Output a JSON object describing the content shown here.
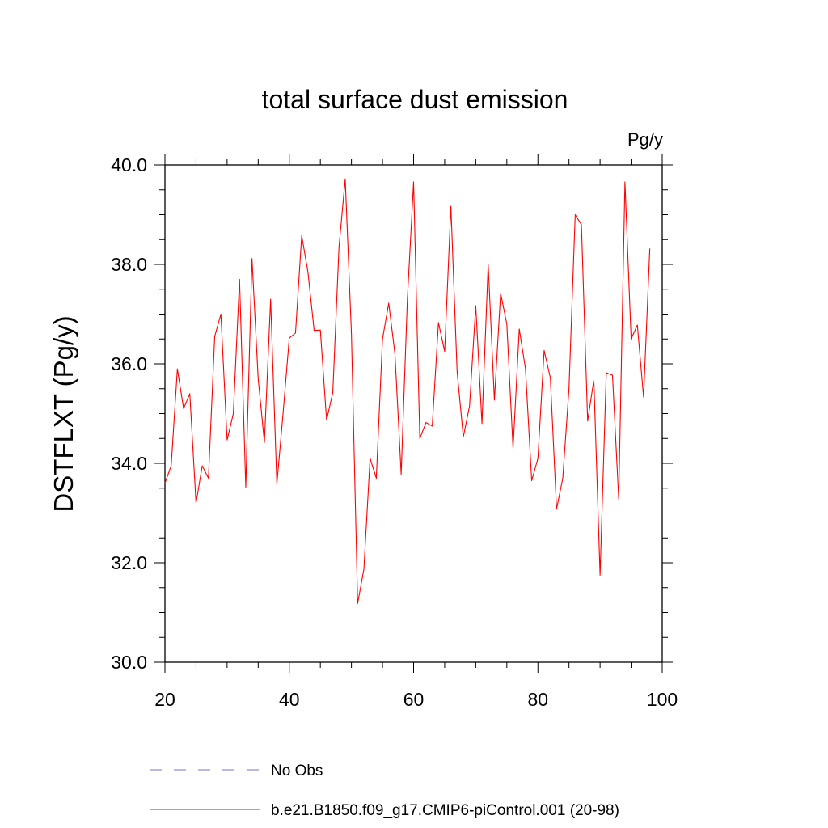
{
  "chart_data": {
    "type": "line",
    "title": "total surface dust emission",
    "units": "Pg/y",
    "xlabel": "",
    "ylabel": "DSTFLXT  (Pg/y)",
    "xlim": [
      20,
      100
    ],
    "ylim": [
      30,
      40
    ],
    "x_ticks": [
      "20",
      "40",
      "60",
      "80",
      "100"
    ],
    "y_ticks": [
      "30.0",
      "32.0",
      "34.0",
      "36.0",
      "38.0",
      "40.0"
    ],
    "grid": false,
    "legend_position": "bottom",
    "legend": [
      {
        "label": "No Obs",
        "color": "#7b6fd0",
        "style": "dashed"
      },
      {
        "label": "b.e21.B1850.f09_g17.CMIP6-piControl.001 (20-98)",
        "color": "#ff0000",
        "style": "solid"
      }
    ],
    "series": [
      {
        "name": "b.e21.B1850.f09_g17.CMIP6-piControl.001 (20-98)",
        "color": "#ff0000",
        "x": [
          20,
          21,
          22,
          23,
          24,
          25,
          26,
          27,
          28,
          29,
          30,
          31,
          32,
          33,
          34,
          35,
          36,
          37,
          38,
          39,
          40,
          41,
          42,
          43,
          44,
          45,
          46,
          47,
          48,
          49,
          50,
          51,
          52,
          53,
          54,
          55,
          56,
          57,
          58,
          59,
          60,
          61,
          62,
          63,
          64,
          65,
          66,
          67,
          68,
          69,
          70,
          71,
          72,
          73,
          74,
          75,
          76,
          77,
          78,
          79,
          80,
          81,
          82,
          83,
          84,
          85,
          86,
          87,
          88,
          89,
          90,
          91,
          92,
          93,
          94,
          95,
          96,
          97,
          98
        ],
        "values": [
          33.6,
          33.95,
          35.9,
          35.1,
          35.4,
          33.2,
          33.95,
          33.7,
          36.55,
          37.0,
          34.47,
          35.0,
          37.7,
          33.52,
          38.12,
          35.7,
          34.42,
          37.3,
          33.58,
          35.0,
          36.52,
          36.62,
          38.58,
          37.85,
          36.67,
          36.68,
          34.87,
          35.42,
          38.35,
          39.72,
          36.6,
          31.18,
          31.87,
          34.1,
          33.7,
          36.5,
          37.22,
          36.2,
          33.78,
          37.3,
          39.66,
          34.5,
          34.82,
          34.75,
          36.83,
          36.25,
          39.17,
          35.85,
          34.53,
          35.15,
          37.17,
          34.8,
          38.0,
          35.27,
          37.42,
          36.8,
          34.3,
          36.7,
          35.9,
          33.65,
          34.1,
          36.27,
          35.72,
          33.08,
          33.7,
          35.5,
          39.0,
          38.8,
          34.85,
          35.68,
          31.75,
          35.82,
          35.77,
          33.28,
          39.66,
          36.5,
          36.78,
          35.33,
          38.32
        ]
      }
    ]
  }
}
